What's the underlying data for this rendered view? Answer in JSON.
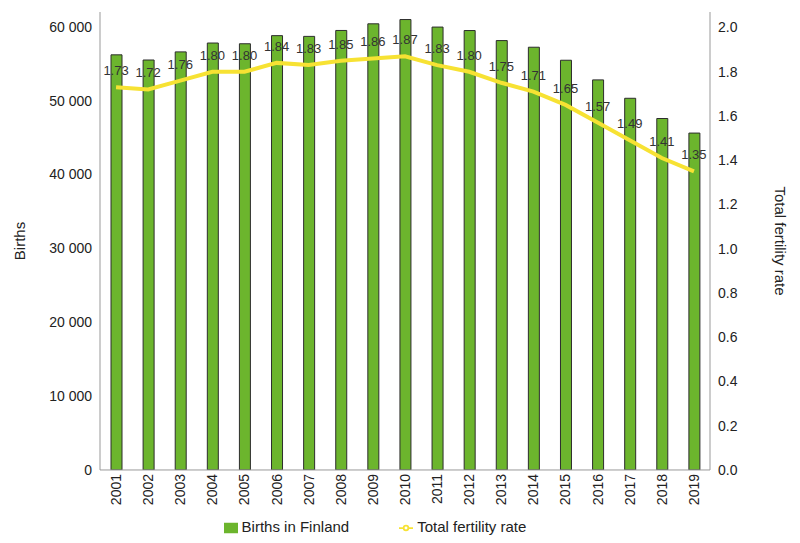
{
  "chart_data": {
    "type": "bar",
    "categories": [
      "2001",
      "2002",
      "2003",
      "2004",
      "2005",
      "2006",
      "2007",
      "2008",
      "2009",
      "2010",
      "2011",
      "2012",
      "2013",
      "2014",
      "2015",
      "2016",
      "2017",
      "2018",
      "2019"
    ],
    "series": [
      {
        "name": "Births in Finland",
        "type": "bar",
        "color": "#6cb52d",
        "values": [
          56200,
          55500,
          56600,
          57800,
          57700,
          58800,
          58700,
          59500,
          60400,
          60980,
          59960,
          59490,
          58130,
          57230,
          55470,
          52810,
          50320,
          47580,
          45610
        ]
      },
      {
        "name": "Total fertility rate",
        "type": "line",
        "axis": "y2",
        "color": "#f7e233",
        "data_labels": true,
        "values": [
          1.73,
          1.72,
          1.76,
          1.8,
          1.8,
          1.84,
          1.83,
          1.85,
          1.86,
          1.87,
          1.83,
          1.8,
          1.75,
          1.71,
          1.65,
          1.57,
          1.49,
          1.41,
          1.35
        ],
        "value_labels": [
          "1.73",
          "1.72",
          "1.76",
          "1.80",
          "1.80",
          "1.84",
          "1.83",
          "1.85",
          "1.86",
          "1.87",
          "1.83",
          "1.80",
          "1.75",
          "1.71",
          "1.65",
          "1.57",
          "1.49",
          "1.41",
          "1.35"
        ]
      }
    ],
    "y_label": "Births",
    "y2_label": "Total fertility rate",
    "ylim": [
      0,
      62000
    ],
    "yticks": [
      0,
      {
        "value": 10000,
        "label": "10 000"
      },
      {
        "value": 20000,
        "label": "20 000"
      },
      {
        "value": 30000,
        "label": "30 000"
      },
      {
        "value": 40000,
        "label": "40 000"
      },
      {
        "value": 50000,
        "label": "50 000"
      },
      {
        "value": 60000,
        "label": "60 000"
      }
    ],
    "y2lim": [
      0,
      2.07
    ],
    "y2ticks": [
      {
        "value": 0,
        "label": "0.0"
      },
      {
        "value": 0.2,
        "label": "0.2"
      },
      {
        "value": 0.4,
        "label": "0.4"
      },
      {
        "value": 0.6,
        "label": "0.6"
      },
      {
        "value": 0.8,
        "label": "0.8"
      },
      {
        "value": 1,
        "label": "1.0"
      },
      {
        "value": 1.2,
        "label": "1.2"
      },
      {
        "value": 1.4,
        "label": "1.4"
      },
      {
        "value": 1.6,
        "label": "1.6"
      },
      {
        "value": 1.8,
        "label": "1.8"
      },
      {
        "value": 2,
        "label": "2.0"
      }
    ],
    "grid": false,
    "legend": "bottom"
  }
}
